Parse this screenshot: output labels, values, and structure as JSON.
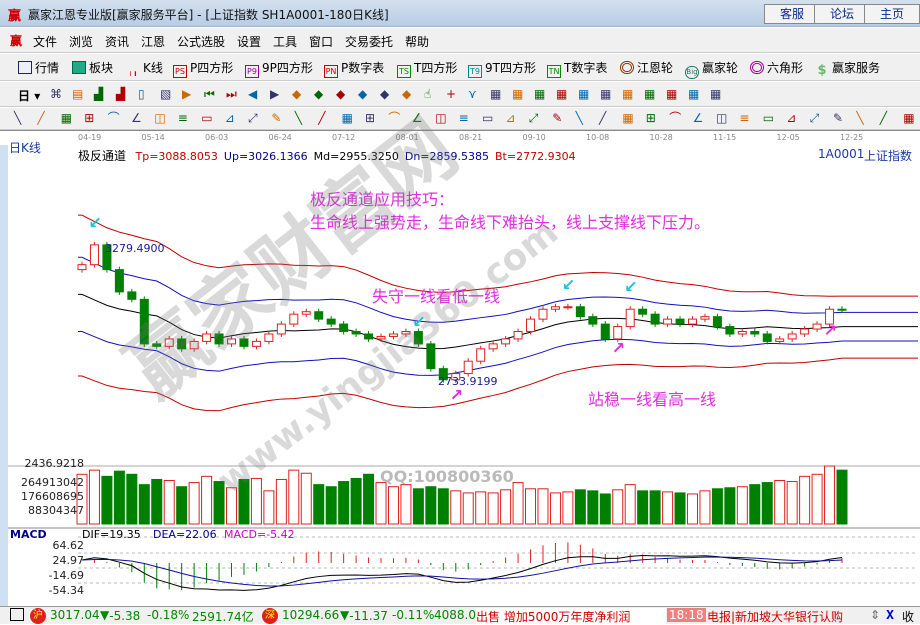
{
  "window": {
    "title": "赢家江恩专业版[赢家服务平台] - [上证指数  SH1A0001-180日K线]",
    "buttons": [
      "客服",
      "论坛",
      "主页"
    ]
  },
  "menu": [
    "文件",
    "浏览",
    "资讯",
    "江恩",
    "公式选股",
    "设置",
    "工具",
    "窗口",
    "交易委托",
    "帮助"
  ],
  "toolbar1": [
    {
      "label": "行情",
      "icon": "grid-icon"
    },
    {
      "label": "板块",
      "icon": "blocks-icon"
    },
    {
      "label": "K线",
      "icon": "candles-icon"
    },
    {
      "label": "P四方形",
      "icon": "PS"
    },
    {
      "label": "9P四方形",
      "icon": "P9"
    },
    {
      "label": "P数字表",
      "icon": "PN"
    },
    {
      "label": "T四方形",
      "icon": "TS"
    },
    {
      "label": "9T四方形",
      "icon": "T9"
    },
    {
      "label": "T数字表",
      "icon": "TN"
    },
    {
      "label": "江恩轮",
      "icon": "target-icon"
    },
    {
      "label": "赢家轮",
      "icon": "Big"
    },
    {
      "label": "六角形",
      "icon": "hexagon-icon"
    },
    {
      "label": "赢家服务",
      "icon": "dollar-icon"
    }
  ],
  "toolbar2": {
    "period": "日"
  },
  "dates": [
    "04-19",
    "05-14",
    "06-03",
    "06-24",
    "07-12",
    "08-01",
    "08-21",
    "09-10",
    "10-08",
    "10-28",
    "11-15",
    "12-05",
    "12-25"
  ],
  "chart": {
    "period_label": "日K线",
    "indicator": "极反通道",
    "params": [
      {
        "text": "Tp=3088.8053",
        "color": "#c00000"
      },
      {
        "text": "Up=3026.1366",
        "color": "#00008b"
      },
      {
        "text": "Md=2955.3250",
        "color": "#000000"
      },
      {
        "text": "Dn=2859.5385",
        "color": "#00008b"
      },
      {
        "text": "Bt=2772.9304",
        "color": "#c00000"
      }
    ],
    "symbol": "1A0001",
    "name": "上证指数",
    "high_label": "3279.4900",
    "low_label": "2733.9199",
    "annotations": {
      "title": "极反通道应用技巧：",
      "rule": "生命线上强势走，生命线下难抬头，线上支撑线下压力。",
      "lose": "失守一线看低一线",
      "hold": "站稳一线看高一线"
    },
    "closes": [
      3200,
      3280,
      3180,
      3090,
      3060,
      2880,
      2870,
      2900,
      2860,
      2890,
      2920,
      2880,
      2900,
      2870,
      2890,
      2920,
      2960,
      3000,
      3010,
      2980,
      2960,
      2930,
      2920,
      2900,
      2910,
      2920,
      2930,
      2880,
      2780,
      2735,
      2760,
      2810,
      2860,
      2880,
      2900,
      2930,
      2980,
      3020,
      3030,
      3030,
      2990,
      2960,
      2900,
      2950,
      3020,
      3000,
      2960,
      2980,
      2960,
      2980,
      2990,
      2950,
      2920,
      2930,
      2920,
      2890,
      2900,
      2920,
      2940,
      2960,
      3020,
      3017
    ],
    "colors": {
      "up": "#e02020",
      "down": "#008000",
      "channel_outer": "#c00000",
      "channel_inner": "#1010c0",
      "mid": "#000000",
      "annotation": "#e02ee0",
      "arrow_top": "#20c0e0"
    }
  },
  "volume": {
    "labels": [
      "2436.9218",
      "264913042",
      "176608695",
      "88304347"
    ],
    "values": [
      240,
      260,
      230,
      255,
      240,
      190,
      215,
      210,
      180,
      200,
      230,
      205,
      175,
      215,
      220,
      160,
      215,
      260,
      245,
      190,
      180,
      205,
      220,
      240,
      200,
      180,
      190,
      170,
      180,
      170,
      160,
      150,
      155,
      150,
      165,
      200,
      170,
      170,
      150,
      155,
      165,
      160,
      145,
      165,
      190,
      160,
      160,
      155,
      150,
      145,
      160,
      170,
      175,
      180,
      190,
      200,
      210,
      205,
      230,
      240,
      280,
      260
    ]
  },
  "macd": {
    "label": "MACD",
    "dif": "DIF=19.35",
    "dea": "DEA=22.06",
    "macd": "MACD=-5.42",
    "ticks": [
      "64.62",
      "24.97",
      "-14.69",
      "-54.34"
    ]
  },
  "watermark": {
    "site": "赢家财富网",
    "url": "www.yingjia360.com",
    "qq": "QQ:100800360"
  },
  "status": {
    "sh_label": "沪",
    "sh": "3017.04",
    "sh_chg": "-5.38",
    "sh_pct": "-0.18%",
    "sh_amt": "2591.74亿",
    "sz_label": "深",
    "sz": "10294.66",
    "sz_chg": "-11.37",
    "sz_pct": "-0.11%",
    "sz_amt": "4088.0",
    "news1": "出售 增加5000万年度净利润",
    "time": "18:18",
    "news2": "电报|新加坡大华银行认购",
    "collapse": "收"
  }
}
